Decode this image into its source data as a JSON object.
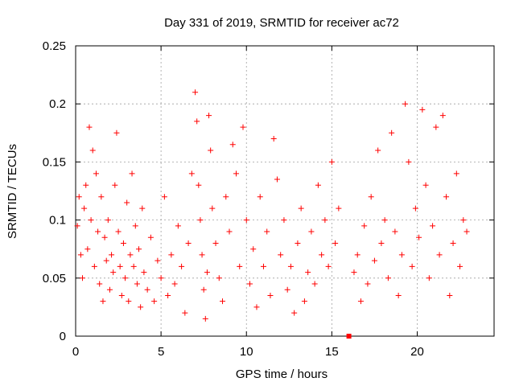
{
  "chart_data": {
    "type": "scatter",
    "title": "Day 331 of 2019, SRMTID for receiver ac72",
    "xlabel": "GPS time / hours",
    "ylabel": "SRMTID / TECUs",
    "xlim": [
      0,
      24.5
    ],
    "ylim": [
      0,
      0.25
    ],
    "xticks": [
      0,
      5,
      10,
      15,
      20
    ],
    "xtick_labels": [
      "0",
      "5",
      "10",
      "15",
      "20"
    ],
    "yticks": [
      0,
      0.05,
      0.1,
      0.15,
      0.2,
      0.25
    ],
    "ytick_labels": [
      "0",
      "0.05",
      "0.1",
      "0.15",
      "0.2",
      "0.25"
    ],
    "grid": true,
    "marker": "plus",
    "point_color": "#ff0000",
    "series": [
      {
        "name": "SRMTID",
        "points": [
          [
            0.1,
            0.095
          ],
          [
            0.2,
            0.12
          ],
          [
            0.3,
            0.07
          ],
          [
            0.4,
            0.05
          ],
          [
            0.5,
            0.11
          ],
          [
            0.6,
            0.13
          ],
          [
            0.7,
            0.075
          ],
          [
            0.8,
            0.18
          ],
          [
            0.9,
            0.1
          ],
          [
            1.0,
            0.16
          ],
          [
            1.1,
            0.06
          ],
          [
            1.2,
            0.14
          ],
          [
            1.3,
            0.09
          ],
          [
            1.4,
            0.045
          ],
          [
            1.5,
            0.12
          ],
          [
            1.6,
            0.03
          ],
          [
            1.7,
            0.085
          ],
          [
            1.8,
            0.065
          ],
          [
            1.9,
            0.1
          ],
          [
            2.0,
            0.04
          ],
          [
            2.1,
            0.07
          ],
          [
            2.2,
            0.055
          ],
          [
            2.3,
            0.13
          ],
          [
            2.4,
            0.175
          ],
          [
            2.5,
            0.09
          ],
          [
            2.6,
            0.06
          ],
          [
            2.7,
            0.035
          ],
          [
            2.8,
            0.08
          ],
          [
            2.9,
            0.05
          ],
          [
            3.0,
            0.115
          ],
          [
            3.1,
            0.03
          ],
          [
            3.2,
            0.07
          ],
          [
            3.3,
            0.14
          ],
          [
            3.4,
            0.06
          ],
          [
            3.5,
            0.095
          ],
          [
            3.6,
            0.045
          ],
          [
            3.7,
            0.075
          ],
          [
            3.8,
            0.025
          ],
          [
            3.9,
            0.11
          ],
          [
            4.0,
            0.055
          ],
          [
            4.2,
            0.04
          ],
          [
            4.4,
            0.085
          ],
          [
            4.6,
            0.03
          ],
          [
            4.8,
            0.065
          ],
          [
            5.0,
            0.05
          ],
          [
            5.2,
            0.12
          ],
          [
            5.4,
            0.035
          ],
          [
            5.6,
            0.07
          ],
          [
            5.8,
            0.045
          ],
          [
            6.0,
            0.095
          ],
          [
            6.2,
            0.06
          ],
          [
            6.4,
            0.02
          ],
          [
            6.6,
            0.08
          ],
          [
            6.8,
            0.14
          ],
          [
            7.0,
            0.21
          ],
          [
            7.1,
            0.185
          ],
          [
            7.2,
            0.13
          ],
          [
            7.3,
            0.1
          ],
          [
            7.4,
            0.07
          ],
          [
            7.5,
            0.04
          ],
          [
            7.6,
            0.015
          ],
          [
            7.7,
            0.055
          ],
          [
            7.8,
            0.19
          ],
          [
            7.9,
            0.16
          ],
          [
            8.0,
            0.11
          ],
          [
            8.2,
            0.08
          ],
          [
            8.4,
            0.05
          ],
          [
            8.6,
            0.03
          ],
          [
            8.8,
            0.12
          ],
          [
            9.0,
            0.09
          ],
          [
            9.2,
            0.165
          ],
          [
            9.4,
            0.14
          ],
          [
            9.6,
            0.06
          ],
          [
            9.8,
            0.18
          ],
          [
            10.0,
            0.1
          ],
          [
            10.2,
            0.045
          ],
          [
            10.4,
            0.075
          ],
          [
            10.6,
            0.025
          ],
          [
            10.8,
            0.12
          ],
          [
            11.0,
            0.06
          ],
          [
            11.2,
            0.09
          ],
          [
            11.4,
            0.035
          ],
          [
            11.6,
            0.17
          ],
          [
            11.8,
            0.135
          ],
          [
            12.0,
            0.07
          ],
          [
            12.2,
            0.1
          ],
          [
            12.4,
            0.04
          ],
          [
            12.6,
            0.06
          ],
          [
            12.8,
            0.02
          ],
          [
            13.0,
            0.08
          ],
          [
            13.2,
            0.11
          ],
          [
            13.4,
            0.03
          ],
          [
            13.6,
            0.055
          ],
          [
            13.8,
            0.09
          ],
          [
            14.0,
            0.045
          ],
          [
            14.2,
            0.13
          ],
          [
            14.4,
            0.07
          ],
          [
            14.6,
            0.1
          ],
          [
            14.8,
            0.06
          ],
          [
            15.0,
            0.15
          ],
          [
            15.2,
            0.08
          ],
          [
            15.4,
            0.11
          ],
          [
            16.3,
            0.055
          ],
          [
            16.5,
            0.07
          ],
          [
            16.7,
            0.03
          ],
          [
            16.9,
            0.095
          ],
          [
            17.1,
            0.045
          ],
          [
            17.3,
            0.12
          ],
          [
            17.5,
            0.065
          ],
          [
            17.7,
            0.16
          ],
          [
            17.9,
            0.08
          ],
          [
            18.1,
            0.1
          ],
          [
            18.3,
            0.05
          ],
          [
            18.5,
            0.175
          ],
          [
            18.7,
            0.09
          ],
          [
            18.9,
            0.035
          ],
          [
            19.1,
            0.07
          ],
          [
            19.3,
            0.2
          ],
          [
            19.5,
            0.15
          ],
          [
            19.7,
            0.06
          ],
          [
            19.9,
            0.11
          ],
          [
            20.1,
            0.085
          ],
          [
            20.3,
            0.195
          ],
          [
            20.5,
            0.13
          ],
          [
            20.7,
            0.05
          ],
          [
            20.9,
            0.095
          ],
          [
            21.1,
            0.18
          ],
          [
            21.3,
            0.07
          ],
          [
            21.5,
            0.19
          ],
          [
            21.7,
            0.12
          ],
          [
            21.9,
            0.035
          ],
          [
            22.1,
            0.08
          ],
          [
            22.3,
            0.14
          ],
          [
            22.5,
            0.06
          ],
          [
            22.7,
            0.1
          ],
          [
            22.9,
            0.09
          ]
        ]
      }
    ],
    "gap_marker": {
      "x": 16.0,
      "y": 0.0
    }
  }
}
